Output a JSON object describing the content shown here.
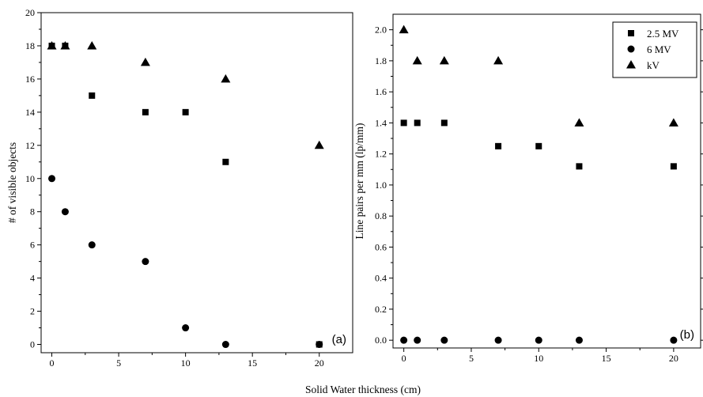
{
  "shared_xlabel": "Solid Water thickness (cm)",
  "legend": [
    {
      "label": "2.5 MV",
      "marker": "square"
    },
    {
      "label": "6 MV",
      "marker": "circle"
    },
    {
      "label": "kV",
      "marker": "triangle"
    }
  ],
  "chart_data": [
    {
      "type": "scatter",
      "panel_label": "(a)",
      "title": "",
      "xlabel": "Solid Water thickness (cm)",
      "ylabel": "# of visible objects",
      "xlim": [
        -0.8,
        22.5
      ],
      "ylim": [
        -0.5,
        20
      ],
      "xticks": [
        0,
        5,
        10,
        15,
        20
      ],
      "yticks": [
        0,
        2,
        4,
        6,
        8,
        10,
        12,
        14,
        16,
        18,
        20
      ],
      "ytick_labels": [
        "0",
        "2",
        "4",
        "6",
        "8",
        "10",
        "12",
        "14",
        "16",
        "18",
        "20"
      ],
      "grid": false,
      "series": [
        {
          "name": "2.5 MV",
          "marker": "square",
          "x": [
            0,
            1,
            3,
            7,
            10,
            13,
            20
          ],
          "y": [
            18,
            18,
            15,
            14,
            14,
            11,
            0
          ]
        },
        {
          "name": "6 MV",
          "marker": "circle",
          "x": [
            0,
            1,
            3,
            7,
            10,
            13,
            20
          ],
          "y": [
            10,
            8,
            6,
            5,
            1,
            0,
            0
          ]
        },
        {
          "name": "kV",
          "marker": "triangle",
          "x": [
            0,
            1,
            3,
            7,
            13,
            20
          ],
          "y": [
            18,
            18,
            18,
            17,
            16,
            12
          ]
        }
      ]
    },
    {
      "type": "scatter",
      "panel_label": "(b)",
      "title": "",
      "xlabel": "Solid Water thickness (cm)",
      "ylabel": "Line pairs per mm (lp/mm)",
      "xlim": [
        -0.8,
        22
      ],
      "ylim": [
        -0.05,
        2.1
      ],
      "xticks": [
        0,
        5,
        10,
        15,
        20
      ],
      "yticks": [
        0,
        0.2,
        0.4,
        0.6,
        0.8,
        1.0,
        1.2,
        1.4,
        1.6,
        1.8,
        2.0
      ],
      "ytick_labels": [
        "0.0",
        "0.2",
        "0.4",
        "0.6",
        "0.8",
        "1.0",
        "1.2",
        "1.4",
        "1.6",
        "1.8",
        "2.0"
      ],
      "grid": false,
      "legend_position": "top-right",
      "series": [
        {
          "name": "2.5 MV",
          "marker": "square",
          "x": [
            0,
            1,
            3,
            7,
            10,
            13,
            20
          ],
          "y": [
            1.4,
            1.4,
            1.4,
            1.25,
            1.25,
            1.12,
            1.12
          ]
        },
        {
          "name": "6 MV",
          "marker": "circle",
          "x": [
            0,
            1,
            3,
            7,
            10,
            13,
            20
          ],
          "y": [
            0,
            0,
            0,
            0,
            0,
            0,
            0
          ]
        },
        {
          "name": "kV",
          "marker": "triangle",
          "x": [
            0,
            1,
            3,
            7,
            13,
            20
          ],
          "y": [
            2.0,
            1.8,
            1.8,
            1.8,
            1.4,
            1.4
          ]
        }
      ]
    }
  ]
}
